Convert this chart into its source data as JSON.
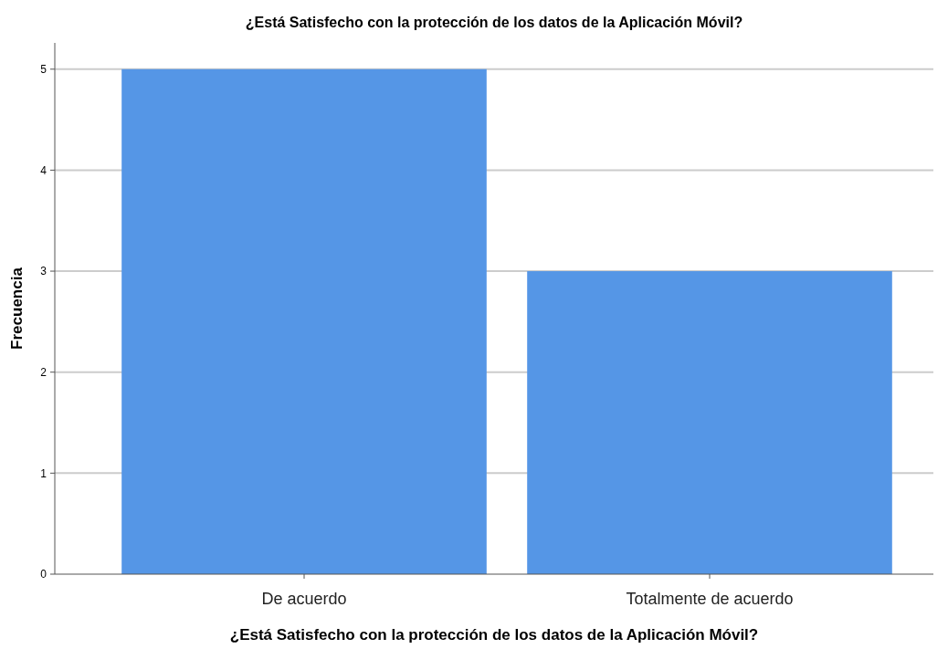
{
  "chart_data": {
    "type": "bar",
    "title": "¿Está Satisfecho con la protección de los datos de la Aplicación Móvil?",
    "xlabel": "¿Está Satisfecho con la protección de los datos de la Aplicación Móvil?",
    "ylabel": "Frecuencia",
    "categories": [
      "De acuerdo",
      "Totalmente de acuerdo"
    ],
    "values": [
      5,
      3
    ],
    "color": "#5596e6",
    "ylim": [
      0,
      5.26
    ],
    "yticks": [
      0,
      1,
      2,
      3,
      4,
      5
    ],
    "grid": "y"
  }
}
